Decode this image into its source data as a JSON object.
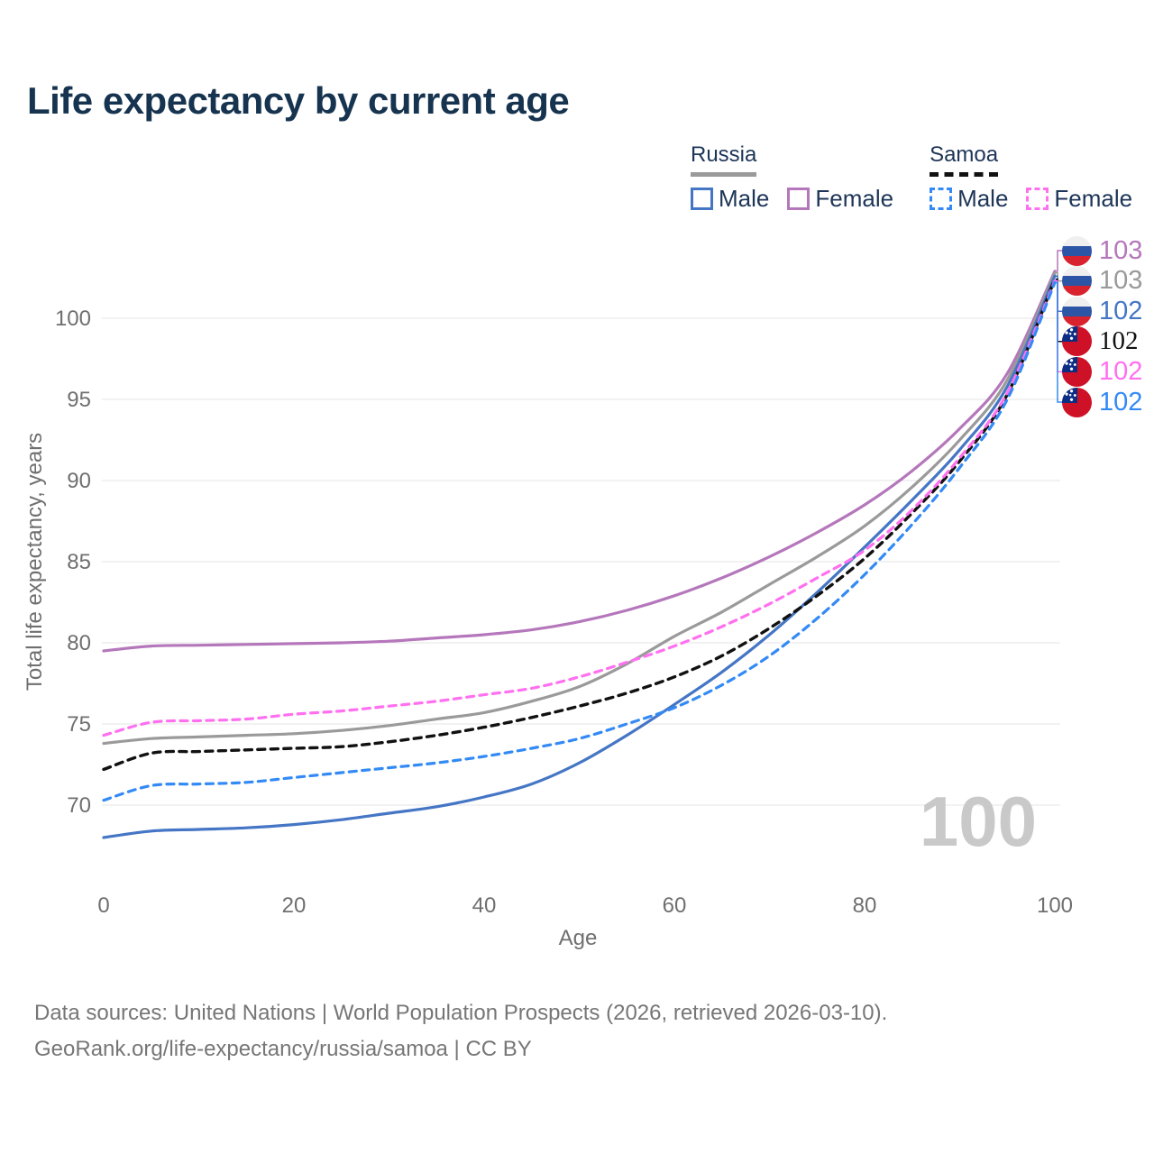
{
  "header": {
    "title": "Life expectancy by current age"
  },
  "legend": {
    "groups": [
      {
        "label": "Russia",
        "underline_style": "solid",
        "underline_color": "#9a9a9a",
        "items": [
          {
            "label": "Male",
            "color": "#4576c5",
            "dash": false
          },
          {
            "label": "Female",
            "color": "#b577bb",
            "dash": false
          }
        ]
      },
      {
        "label": "Samoa",
        "underline_style": "dashed",
        "underline_color": "#111111",
        "items": [
          {
            "label": "Male",
            "color": "#338af5",
            "dash": true
          },
          {
            "label": "Female",
            "color": "#ff70f0",
            "dash": true
          }
        ]
      }
    ]
  },
  "chart_data": {
    "type": "line",
    "title": "Life expectancy by current age",
    "xlabel": "Age",
    "ylabel": "Total life expectancy, years",
    "x": [
      0,
      5,
      10,
      15,
      20,
      25,
      30,
      35,
      40,
      45,
      50,
      55,
      60,
      65,
      70,
      75,
      80,
      85,
      90,
      95,
      100
    ],
    "x_ticks": [
      0,
      20,
      40,
      60,
      80,
      100
    ],
    "y_ticks": [
      70,
      75,
      80,
      85,
      90,
      95,
      100
    ],
    "xlim": [
      0,
      100
    ],
    "ylim": [
      66.5,
      104
    ],
    "grid": "horizontal",
    "legend_position": "top-right",
    "series": [
      {
        "name": "Russia Female",
        "country": "Russia",
        "sex": "Female",
        "color": "#b577bb",
        "dash": false,
        "end_label": "103",
        "values": [
          79.5,
          79.8,
          79.85,
          79.9,
          79.95,
          80.0,
          80.1,
          80.3,
          80.5,
          80.8,
          81.3,
          82.0,
          82.9,
          84.0,
          85.3,
          86.8,
          88.5,
          90.6,
          93.2,
          96.6,
          102.9
        ]
      },
      {
        "name": "Russia",
        "country": "Russia",
        "sex": "All",
        "color": "#9a9a9a",
        "dash": false,
        "end_label": "103",
        "values": [
          73.8,
          74.1,
          74.2,
          74.3,
          74.4,
          74.6,
          74.9,
          75.3,
          75.7,
          76.4,
          77.3,
          78.7,
          80.4,
          81.9,
          83.6,
          85.3,
          87.2,
          89.6,
          92.5,
          96.2,
          102.8
        ]
      },
      {
        "name": "Russia Male",
        "country": "Russia",
        "sex": "Male",
        "color": "#4576c5",
        "dash": false,
        "end_label": "102",
        "values": [
          68.0,
          68.4,
          68.5,
          68.6,
          68.8,
          69.1,
          69.5,
          69.9,
          70.5,
          71.3,
          72.6,
          74.3,
          76.2,
          78.2,
          80.5,
          83.1,
          85.9,
          88.8,
          91.9,
          95.8,
          102.6
        ]
      },
      {
        "name": "Samoa",
        "country": "Samoa",
        "sex": "All",
        "color": "#111111",
        "dash": true,
        "end_label": "102",
        "values": [
          72.2,
          73.2,
          73.3,
          73.4,
          73.5,
          73.6,
          73.9,
          74.3,
          74.8,
          75.4,
          76.1,
          76.9,
          77.9,
          79.2,
          80.9,
          82.9,
          85.2,
          88.0,
          91.2,
          95.3,
          102.4
        ]
      },
      {
        "name": "Samoa Female",
        "country": "Samoa",
        "sex": "Female",
        "color": "#ff70f0",
        "dash": true,
        "end_label": "102",
        "values": [
          74.3,
          75.1,
          75.2,
          75.3,
          75.6,
          75.8,
          76.1,
          76.4,
          76.8,
          77.2,
          77.9,
          78.8,
          79.8,
          81.0,
          82.4,
          84.0,
          85.7,
          88.2,
          91.4,
          95.4,
          102.3
        ]
      },
      {
        "name": "Samoa Male",
        "country": "Samoa",
        "sex": "Male",
        "color": "#338af5",
        "dash": true,
        "end_label": "102",
        "values": [
          70.3,
          71.2,
          71.3,
          71.4,
          71.7,
          72.0,
          72.3,
          72.6,
          73.0,
          73.5,
          74.1,
          75.0,
          76.0,
          77.4,
          79.2,
          81.5,
          84.2,
          87.3,
          90.8,
          95.0,
          102.2
        ]
      }
    ]
  },
  "end_labels": [
    {
      "value": "103",
      "flag": "russia",
      "color": "#b577bb"
    },
    {
      "value": "103",
      "flag": "russia",
      "color": "#9a9a9a"
    },
    {
      "value": "102",
      "flag": "russia",
      "color": "#4576c5"
    },
    {
      "value": "102",
      "flag": "samoa",
      "color": "#111111"
    },
    {
      "value": "102",
      "flag": "samoa",
      "color": "#ff70f0"
    },
    {
      "value": "102",
      "flag": "samoa",
      "color": "#338af5"
    }
  ],
  "watermark": "100",
  "footer": {
    "line1": "Data sources: United Nations | World Population Prospects (2026, retrieved 2026-03-10).",
    "line2": "GeoRank.org/life-expectancy/russia/samoa | CC BY"
  }
}
